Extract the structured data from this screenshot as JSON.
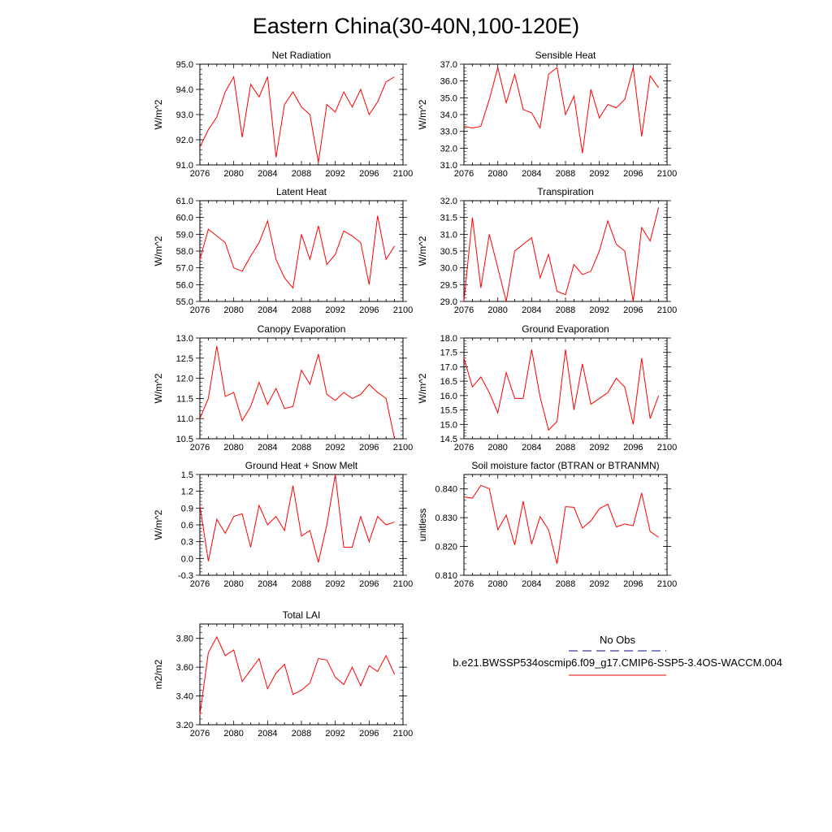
{
  "title": "Eastern China(30-40N,100-120E)",
  "legend": {
    "obs_label": "No Obs",
    "obs_color": "#3c3ca0",
    "case_label": "b.e21.BWSSP534oscmip6.f09_g17.CMIP6-SSP5-3.4OS-WACCM.004",
    "case_color": "#ff0000"
  },
  "chart_data": [
    {
      "type": "line",
      "title": "Net Radiation",
      "ylabel": "W/m^2",
      "series_color": "#ff0000",
      "x": [
        2076,
        2077,
        2078,
        2079,
        2080,
        2081,
        2082,
        2083,
        2084,
        2085,
        2086,
        2087,
        2088,
        2089,
        2090,
        2091,
        2092,
        2093,
        2094,
        2095,
        2096,
        2097,
        2098,
        2099
      ],
      "values": [
        91.7,
        92.4,
        92.9,
        93.9,
        94.5,
        92.1,
        94.2,
        93.7,
        94.5,
        91.3,
        93.4,
        93.9,
        93.3,
        93.0,
        91.1,
        93.4,
        93.1,
        93.9,
        93.3,
        94.0,
        93.0,
        93.5,
        94.3,
        94.5
      ],
      "xlim": [
        2076,
        2100
      ],
      "ylim": [
        91.0,
        95.0
      ],
      "xticks": [
        "2076",
        "2080",
        "2084",
        "2088",
        "2092",
        "2096",
        "2100"
      ],
      "yticks": [
        "91.0",
        "92.0",
        "93.0",
        "94.0",
        "95.0"
      ]
    },
    {
      "type": "line",
      "title": "Sensible Heat",
      "ylabel": "W/m^2",
      "series_color": "#ff0000",
      "x": [
        2076,
        2077,
        2078,
        2079,
        2080,
        2081,
        2082,
        2083,
        2084,
        2085,
        2086,
        2087,
        2088,
        2089,
        2090,
        2091,
        2092,
        2093,
        2094,
        2095,
        2096,
        2097,
        2098,
        2099
      ],
      "values": [
        33.3,
        33.2,
        33.3,
        34.9,
        36.8,
        34.7,
        36.4,
        34.3,
        34.1,
        33.2,
        36.4,
        36.8,
        34.0,
        35.1,
        31.7,
        35.5,
        33.8,
        34.6,
        34.4,
        34.9,
        36.8,
        32.7,
        36.3,
        35.6
      ],
      "xlim": [
        2076,
        2100
      ],
      "ylim": [
        31.0,
        37.0
      ],
      "xticks": [
        "2076",
        "2080",
        "2084",
        "2088",
        "2092",
        "2096",
        "2100"
      ],
      "yticks": [
        "31.0",
        "32.0",
        "33.0",
        "34.0",
        "35.0",
        "36.0",
        "37.0"
      ]
    },
    {
      "type": "line",
      "title": "Latent Heat",
      "ylabel": "W/m^2",
      "series_color": "#ff0000",
      "x": [
        2076,
        2077,
        2078,
        2079,
        2080,
        2081,
        2082,
        2083,
        2084,
        2085,
        2086,
        2087,
        2088,
        2089,
        2090,
        2091,
        2092,
        2093,
        2094,
        2095,
        2096,
        2097,
        2098,
        2099
      ],
      "values": [
        57.5,
        59.3,
        58.9,
        58.5,
        57.0,
        56.8,
        57.7,
        58.5,
        59.8,
        57.5,
        56.4,
        55.8,
        59.0,
        57.5,
        59.5,
        57.2,
        57.8,
        59.2,
        58.9,
        58.5,
        56.0,
        60.1,
        57.5,
        58.3
      ],
      "xlim": [
        2076,
        2100
      ],
      "ylim": [
        55.0,
        61.0
      ],
      "xticks": [
        "2076",
        "2080",
        "2084",
        "2088",
        "2092",
        "2096",
        "2100"
      ],
      "yticks": [
        "55.0",
        "56.0",
        "57.0",
        "58.0",
        "59.0",
        "60.0",
        "61.0"
      ]
    },
    {
      "type": "line",
      "title": "Transpiration",
      "ylabel": "W/m^2",
      "series_color": "#ff0000",
      "x": [
        2076,
        2077,
        2078,
        2079,
        2080,
        2081,
        2082,
        2083,
        2084,
        2085,
        2086,
        2087,
        2088,
        2089,
        2090,
        2091,
        2092,
        2093,
        2094,
        2095,
        2096,
        2097,
        2098,
        2099
      ],
      "values": [
        29.0,
        31.5,
        29.4,
        31.0,
        30.0,
        29.0,
        30.5,
        30.7,
        30.9,
        29.7,
        30.4,
        29.3,
        29.2,
        30.1,
        29.8,
        29.9,
        30.5,
        31.4,
        30.7,
        30.5,
        29.0,
        31.2,
        30.8,
        31.8
      ],
      "xlim": [
        2076,
        2100
      ],
      "ylim": [
        29.0,
        32.0
      ],
      "xticks": [
        "2076",
        "2080",
        "2084",
        "2088",
        "2092",
        "2096",
        "2100"
      ],
      "yticks": [
        "29.0",
        "29.5",
        "30.0",
        "30.5",
        "31.0",
        "31.5",
        "32.0"
      ]
    },
    {
      "type": "line",
      "title": "Canopy Evaporation",
      "ylabel": "W/m^2",
      "series_color": "#ff0000",
      "x": [
        2076,
        2077,
        2078,
        2079,
        2080,
        2081,
        2082,
        2083,
        2084,
        2085,
        2086,
        2087,
        2088,
        2089,
        2090,
        2091,
        2092,
        2093,
        2094,
        2095,
        2096,
        2097,
        2098,
        2099
      ],
      "values": [
        11.0,
        11.5,
        12.8,
        11.55,
        11.65,
        10.95,
        11.3,
        11.9,
        11.35,
        11.75,
        11.25,
        11.3,
        12.2,
        11.85,
        12.6,
        11.6,
        11.45,
        11.65,
        11.5,
        11.6,
        11.85,
        11.65,
        11.5,
        10.5
      ],
      "xlim": [
        2076,
        2100
      ],
      "ylim": [
        10.5,
        13.0
      ],
      "xticks": [
        "2076",
        "2080",
        "2084",
        "2088",
        "2092",
        "2096",
        "2100"
      ],
      "yticks": [
        "10.5",
        "11.0",
        "11.5",
        "12.0",
        "12.5",
        "13.0"
      ]
    },
    {
      "type": "line",
      "title": "Ground Evaporation",
      "ylabel": "W/m^2",
      "series_color": "#ff0000",
      "x": [
        2076,
        2077,
        2078,
        2079,
        2080,
        2081,
        2082,
        2083,
        2084,
        2085,
        2086,
        2087,
        2088,
        2089,
        2090,
        2091,
        2092,
        2093,
        2094,
        2095,
        2096,
        2097,
        2098,
        2099
      ],
      "values": [
        17.3,
        16.3,
        16.65,
        16.1,
        15.4,
        16.8,
        15.9,
        15.9,
        17.6,
        15.95,
        14.8,
        15.1,
        17.6,
        15.5,
        17.1,
        15.7,
        15.9,
        16.1,
        16.6,
        16.3,
        15.0,
        17.3,
        15.2,
        16.0
      ],
      "xlim": [
        2076,
        2100
      ],
      "ylim": [
        14.5,
        18.0
      ],
      "xticks": [
        "2076",
        "2080",
        "2084",
        "2088",
        "2092",
        "2096",
        "2100"
      ],
      "yticks": [
        "14.5",
        "15.0",
        "15.5",
        "16.0",
        "16.5",
        "17.0",
        "17.5",
        "18.0"
      ]
    },
    {
      "type": "line",
      "title": "Ground Heat + Snow Melt",
      "ylabel": "W/m^2",
      "series_color": "#ff0000",
      "x": [
        2076,
        2077,
        2078,
        2079,
        2080,
        2081,
        2082,
        2083,
        2084,
        2085,
        2086,
        2087,
        2088,
        2089,
        2090,
        2091,
        2092,
        2093,
        2094,
        2095,
        2096,
        2097,
        2098,
        2099
      ],
      "values": [
        0.95,
        -0.05,
        0.7,
        0.45,
        0.75,
        0.8,
        0.2,
        0.95,
        0.6,
        0.75,
        0.5,
        1.3,
        0.4,
        0.5,
        -0.07,
        0.6,
        1.5,
        0.2,
        0.2,
        0.75,
        0.3,
        0.75,
        0.6,
        0.65
      ],
      "xlim": [
        2076,
        2100
      ],
      "ylim": [
        -0.3,
        1.5
      ],
      "xticks": [
        "2076",
        "2080",
        "2084",
        "2088",
        "2092",
        "2096",
        "2100"
      ],
      "yticks": [
        "-0.3",
        "0.0",
        "0.3",
        "0.6",
        "0.9",
        "1.2",
        "1.5"
      ]
    },
    {
      "type": "line",
      "title": "Soil moisture factor (BTRAN or BTRANMN)",
      "ylabel": "unitless",
      "series_color": "#ff0000",
      "x": [
        2076,
        2077,
        2078,
        2079,
        2080,
        2081,
        2082,
        2083,
        2084,
        2085,
        2086,
        2087,
        2088,
        2089,
        2090,
        2091,
        2092,
        2093,
        2094,
        2095,
        2096,
        2097,
        2098,
        2099
      ],
      "values": [
        0.8372,
        0.8368,
        0.8412,
        0.8401,
        0.8258,
        0.8309,
        0.8205,
        0.8357,
        0.8208,
        0.8304,
        0.8258,
        0.814,
        0.8338,
        0.8336,
        0.8264,
        0.8289,
        0.8331,
        0.8347,
        0.8268,
        0.8278,
        0.8272,
        0.8386,
        0.8252,
        0.8232
      ],
      "xlim": [
        2076,
        2100
      ],
      "ylim": [
        0.81,
        0.845
      ],
      "xticks": [
        "2076",
        "2080",
        "2084",
        "2088",
        "2092",
        "2096",
        "2100"
      ],
      "yticks": [
        "0.810",
        "0.820",
        "0.830",
        "0.840"
      ]
    },
    {
      "type": "line",
      "title": "Total LAI",
      "ylabel": "m2/m2",
      "series_color": "#ff0000",
      "x": [
        2076,
        2077,
        2078,
        2079,
        2080,
        2081,
        2082,
        2083,
        2084,
        2085,
        2086,
        2087,
        2088,
        2089,
        2090,
        2091,
        2092,
        2093,
        2094,
        2095,
        2096,
        2097,
        2098,
        2099
      ],
      "values": [
        3.27,
        3.7,
        3.81,
        3.68,
        3.72,
        3.5,
        3.58,
        3.66,
        3.45,
        3.56,
        3.62,
        3.41,
        3.44,
        3.49,
        3.66,
        3.65,
        3.53,
        3.48,
        3.6,
        3.47,
        3.61,
        3.57,
        3.68,
        3.55
      ],
      "xlim": [
        2076,
        2100
      ],
      "ylim": [
        3.2,
        3.9
      ],
      "xticks": [
        "2076",
        "2080",
        "2084",
        "2088",
        "2092",
        "2096",
        "2100"
      ],
      "yticks": [
        "3.20",
        "3.40",
        "3.60",
        "3.80"
      ]
    }
  ]
}
